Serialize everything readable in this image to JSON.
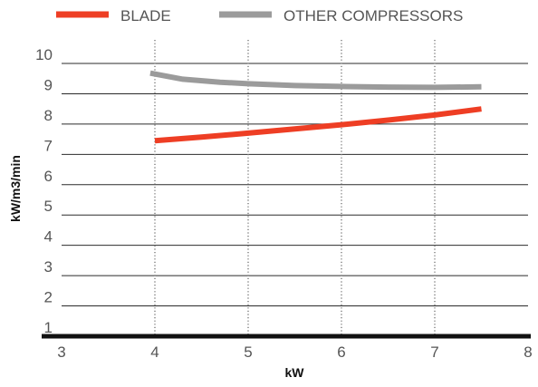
{
  "chart_data": {
    "type": "line",
    "xlabel": "kW",
    "ylabel": "kW/m3/min",
    "xlim": [
      3,
      8
    ],
    "ylim": [
      1,
      10
    ],
    "x_ticks": [
      "3",
      "4",
      "5",
      "6",
      "7",
      "8"
    ],
    "y_ticks": [
      "1",
      "2",
      "3",
      "4",
      "5",
      "6",
      "7",
      "8",
      "9",
      "10"
    ],
    "grid": "horizontal solid lines, vertical dotted lines",
    "legend_position": "top-left",
    "series": [
      {
        "name": "BLADE",
        "color": "#ee3e24",
        "x": [
          4.0,
          4.5,
          5.0,
          5.5,
          6.0,
          6.5,
          7.0,
          7.5
        ],
        "y": [
          7.45,
          7.57,
          7.7,
          7.84,
          7.98,
          8.13,
          8.3,
          8.5
        ]
      },
      {
        "name": "OTHER COMPRESSORS",
        "color": "#9b9b9b",
        "x": [
          3.95,
          4.3,
          4.7,
          5.0,
          5.5,
          6.0,
          6.5,
          7.0,
          7.5
        ],
        "y": [
          9.68,
          9.48,
          9.38,
          9.33,
          9.27,
          9.24,
          9.22,
          9.21,
          9.23
        ]
      }
    ]
  }
}
